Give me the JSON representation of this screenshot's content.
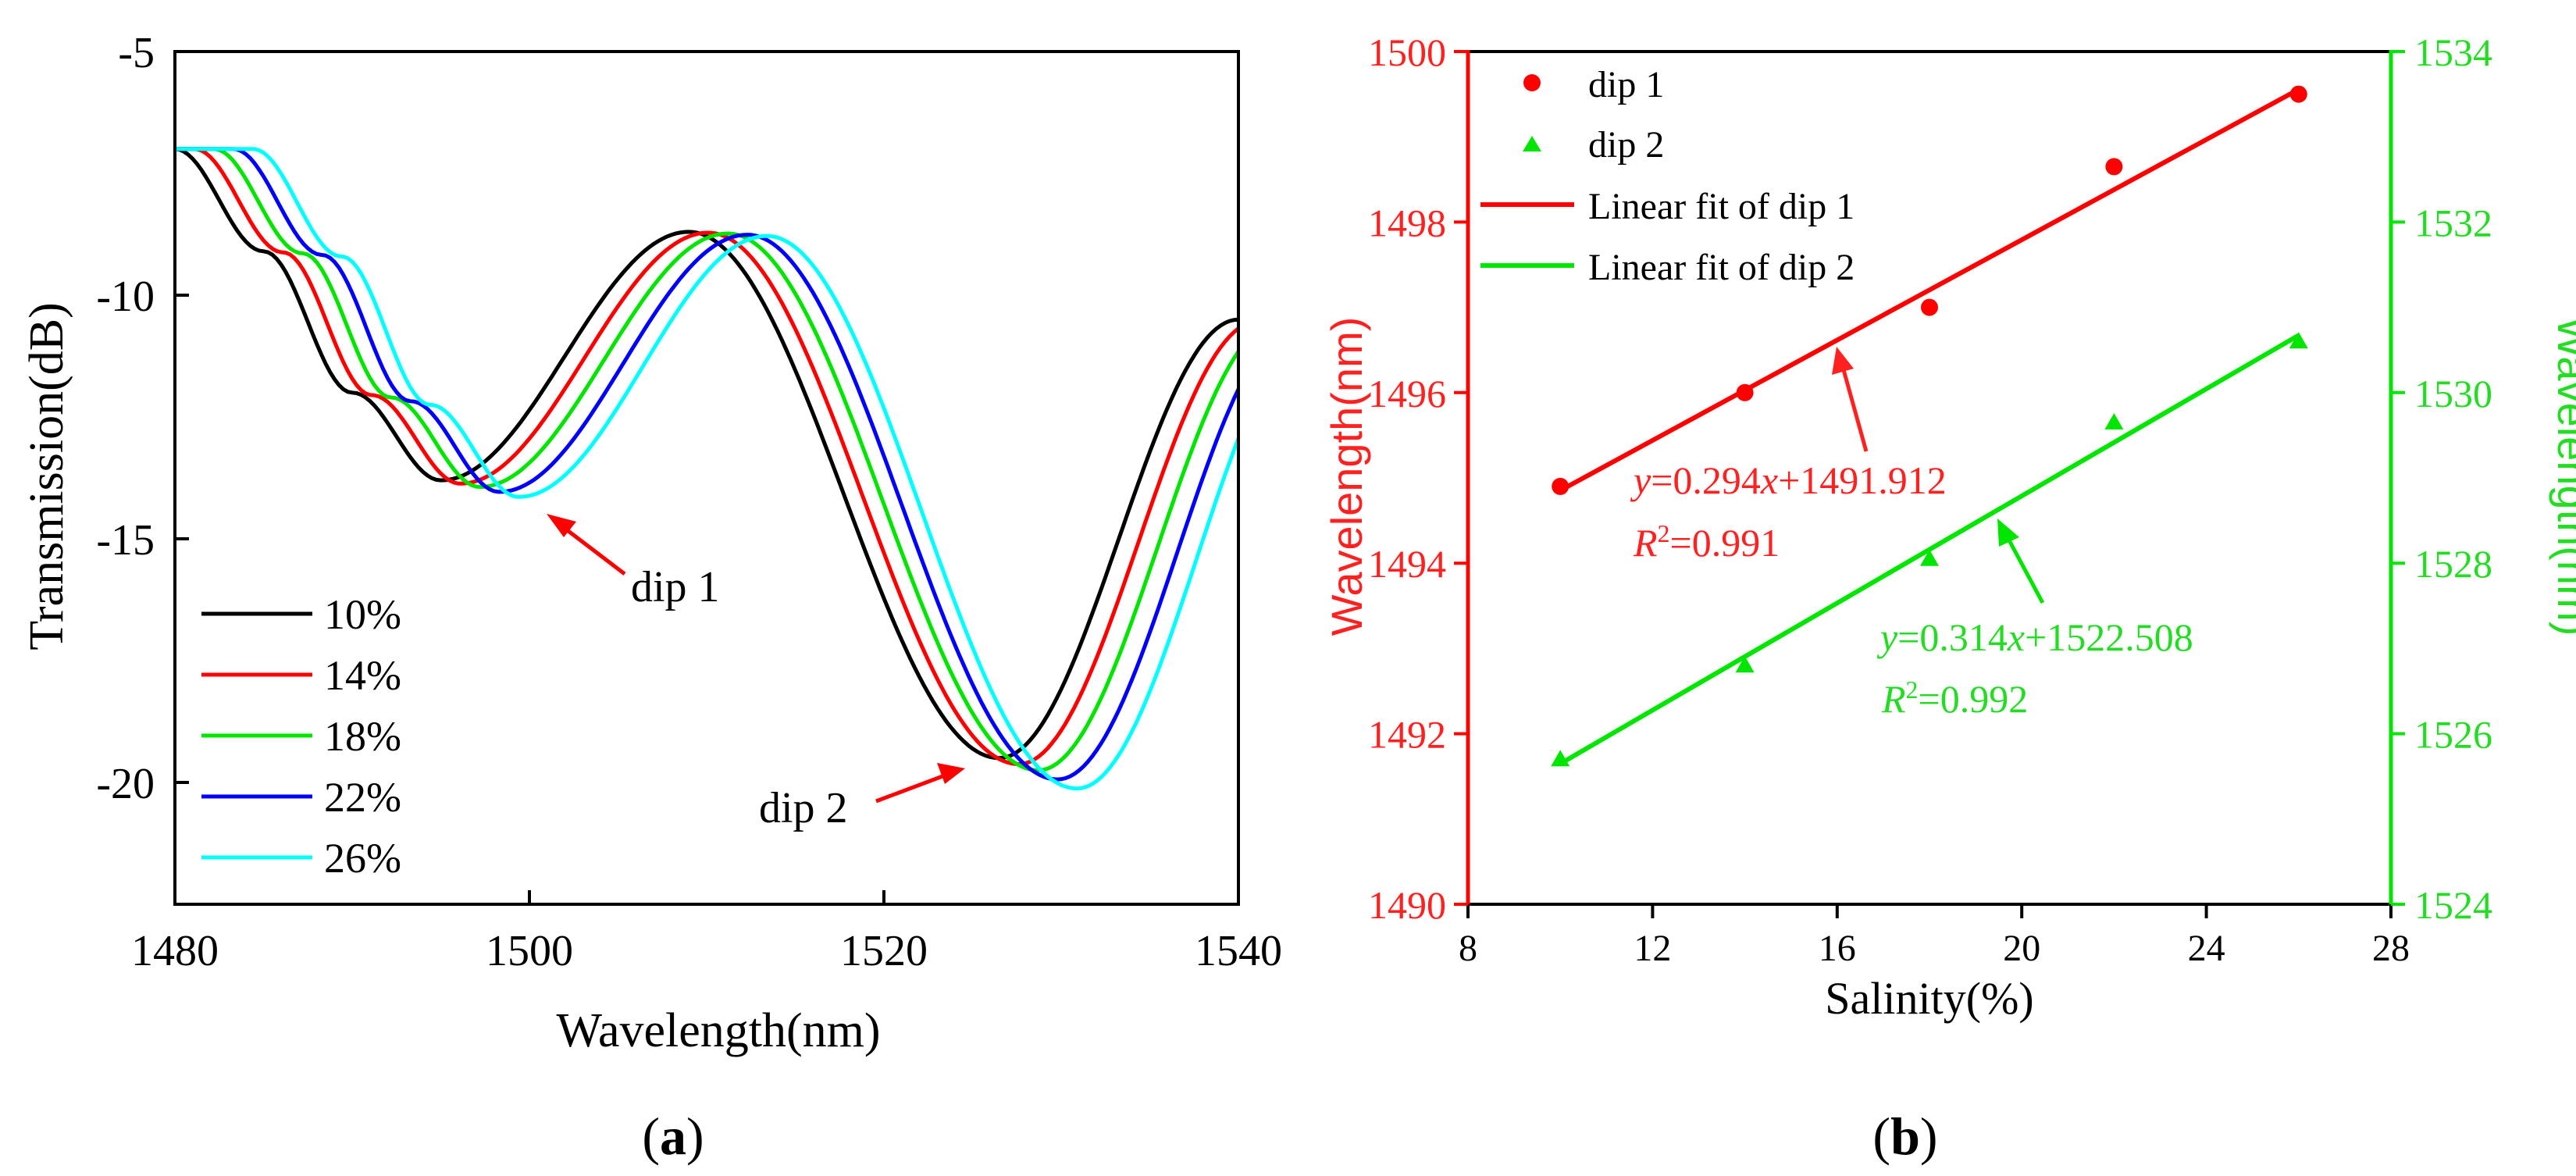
{
  "colors": {
    "black": "#000000",
    "red": "#ff0000",
    "green": "#00e600",
    "blue": "#0000ff",
    "cyan": "#00ffff",
    "red_text": "#ff2020",
    "green_text": "#22dd22"
  },
  "chart_data": [
    {
      "panel_label": "(a)",
      "panel_letter": "a",
      "type": "line",
      "xlabel": "Wavelength(nm)",
      "ylabel": "Transmission(dB)",
      "xlim": [
        1480,
        1540
      ],
      "ylim": [
        -22.5,
        -5
      ],
      "xticks": [
        1480,
        1500,
        1520,
        1540
      ],
      "yticks": [
        -5,
        -10,
        -15,
        -20
      ],
      "ytick_labels": [
        "-5",
        "-10",
        "-15",
        "-20"
      ],
      "legend": {
        "position": "lower-left",
        "entries": [
          "10%",
          "14%",
          "18%",
          "22%",
          "26%"
        ]
      },
      "series": [
        {
          "name": "10%",
          "color": "black",
          "shift": 0.0,
          "depth_scale": 1.0,
          "x": [
            1480,
            1485,
            1490,
            1495,
            1509,
            1526.5,
            1540
          ],
          "y": [
            -7.0,
            -9.1,
            -12.0,
            -13.8,
            -8.7,
            -19.5,
            -10.5
          ]
        },
        {
          "name": "14%",
          "color": "red",
          "shift": 1.1,
          "depth_scale": 1.01,
          "x": [
            1480,
            1496.1,
            1510.1,
            1527.6,
            1540
          ],
          "y": [
            -6.95,
            -13.8,
            -8.75,
            -19.7,
            -10.9
          ]
        },
        {
          "name": "18%",
          "color": "green",
          "shift": 2.2,
          "depth_scale": 1.02,
          "x": [
            1480,
            1497.2,
            1511.2,
            1528.7,
            1540
          ],
          "y": [
            -6.9,
            -13.9,
            -8.8,
            -19.8,
            -11.3
          ]
        },
        {
          "name": "22%",
          "color": "blue",
          "shift": 3.3,
          "depth_scale": 1.035,
          "x": [
            1480,
            1498.3,
            1512.3,
            1529.8,
            1540
          ],
          "y": [
            -6.85,
            -14.0,
            -8.85,
            -20.2,
            -12.2
          ]
        },
        {
          "name": "26%",
          "color": "cyan",
          "shift": 4.4,
          "depth_scale": 1.05,
          "x": [
            1480,
            1499.4,
            1513.4,
            1530.9,
            1540
          ],
          "y": [
            -6.8,
            -14.1,
            -8.9,
            -20.6,
            -12.7
          ]
        }
      ],
      "annotations": [
        {
          "text": "dip 1",
          "arrow_to": [
            1500.2,
            -14.5
          ]
        },
        {
          "text": "dip 2",
          "arrow_to": [
            1526.5,
            -20.1
          ]
        }
      ]
    },
    {
      "panel_label": "(b)",
      "panel_letter": "b",
      "type": "scatter",
      "xlabel": "Salinity(%)",
      "ylabel_left": "Wavelength(nm)",
      "ylabel_right": "Wavelength(nm)",
      "xlim": [
        8,
        28
      ],
      "xticks": [
        8,
        12,
        16,
        20,
        24,
        28
      ],
      "ylim_left": [
        1490,
        1500
      ],
      "yticks_left": [
        1490,
        1492,
        1494,
        1496,
        1498,
        1500
      ],
      "ylim_right": [
        1524,
        1534
      ],
      "yticks_right": [
        1524,
        1526,
        1528,
        1530,
        1532,
        1534
      ],
      "legend": {
        "position": "top-left",
        "entries": [
          "dip 1",
          "dip 2",
          "Linear fit of dip 1",
          "Linear fit of dip 2"
        ]
      },
      "series": [
        {
          "name": "dip 1",
          "axis": "left",
          "marker": "circle",
          "color": "red",
          "x": [
            10,
            14,
            18,
            22,
            26
          ],
          "y": [
            1494.9,
            1496.0,
            1497.0,
            1498.65,
            1499.5
          ]
        },
        {
          "name": "dip 2",
          "axis": "right",
          "marker": "triangle",
          "color": "green",
          "x": [
            10,
            14,
            18,
            22,
            26
          ],
          "y": [
            1525.7,
            1526.8,
            1528.05,
            1529.65,
            1530.6
          ]
        },
        {
          "name": "Linear fit of dip 1",
          "axis": "left",
          "color": "red",
          "slope": 0.294,
          "intercept": 1491.912,
          "x_range": [
            10,
            26
          ]
        },
        {
          "name": "Linear fit of dip 2",
          "axis": "right",
          "color": "green",
          "slope": 0.314,
          "intercept": 1522.508,
          "x_range": [
            10,
            26
          ]
        }
      ],
      "annotations": [
        {
          "series": "Linear fit of dip 1",
          "eq": "=0.294",
          "eq2": "+1491.912",
          "r2_value": "=0.991",
          "arrow_to": [
            14.7,
            1496.0
          ]
        },
        {
          "series": "Linear fit of dip 2",
          "eq": "=0.314",
          "eq2": "+1522.508",
          "r2_value": "=0.992",
          "arrow_to": [
            19.0,
            1527.7
          ]
        }
      ]
    }
  ]
}
